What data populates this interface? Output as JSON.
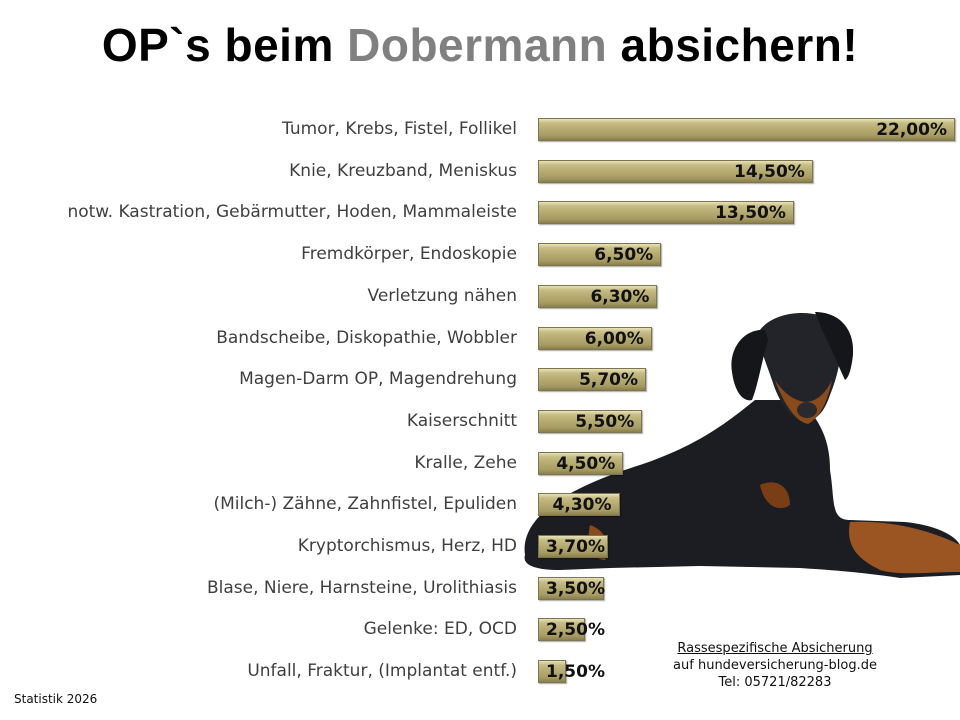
{
  "title": {
    "part1": "OP`s beim ",
    "accent": "Dobermann",
    "part2": " absichern!"
  },
  "colors": {
    "bar": "#b5aa70",
    "accent_title": "#808080",
    "label": "#3f3f3f"
  },
  "chart_data": {
    "type": "bar",
    "orientation": "horizontal",
    "categories": [
      "Tumor, Krebs, Fistel, Follikel",
      "Knie, Kreuzband, Meniskus",
      "notw. Kastration, Gebärmutter, Hoden, Mammaleiste",
      "Fremdkörper, Endoskopie",
      "Verletzung nähen",
      "Bandscheibe, Diskopathie, Wobbler",
      "Magen-Darm OP, Magendrehung",
      "Kaiserschnitt",
      "Kralle, Zehe",
      "(Milch-) Zähne, Zahnfistel, Epuliden",
      "Kryptorchismus, Herz, HD",
      "Blase, Niere, Harnsteine, Urolithiasis",
      "Gelenke: ED, OCD",
      "Unfall, Fraktur, (Implantat entf.)"
    ],
    "values": [
      22.0,
      14.5,
      13.5,
      6.5,
      6.3,
      6.0,
      5.7,
      5.5,
      4.5,
      4.3,
      3.7,
      3.5,
      2.5,
      1.5
    ],
    "data_labels": [
      "22,00%",
      "14,50%",
      "13,50%",
      "6,50%",
      "6,30%",
      "6,00%",
      "5,70%",
      "5,50%",
      "4,50%",
      "4,30%",
      "3,70%",
      "3,50%",
      "2,50%",
      "1,50%"
    ],
    "xlim": [
      0,
      22
    ],
    "grid": false,
    "legend": "none"
  },
  "footer": {
    "line1": "Rassespezifische  Absicherung",
    "line2": "auf hundeversicherung-blog.de",
    "line3": "Tel: 05721/82283"
  },
  "statistik": "Statistik 2026",
  "image": {
    "subject": "dobermann-dog-photo"
  }
}
